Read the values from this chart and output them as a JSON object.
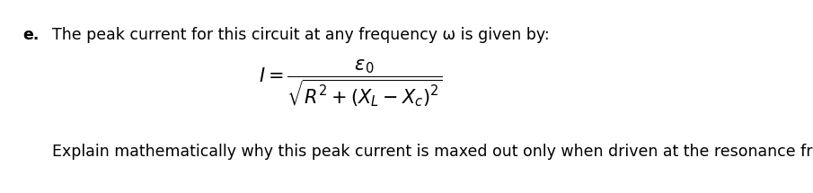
{
  "background_color": "#ffffff",
  "label_e": "e.",
  "line1": "The peak current for this circuit at any frequency ω is given by:",
  "formula": "I = \\dfrac{\\varepsilon_0}{\\sqrt{R^2 + (X_L - X_c)^2}}",
  "line3": "Explain mathematically why this peak current is maxed out only when driven at the resonance frequency",
  "fontsize_text": 12.5,
  "fontsize_formula": 15,
  "fontsize_label": 12.5
}
